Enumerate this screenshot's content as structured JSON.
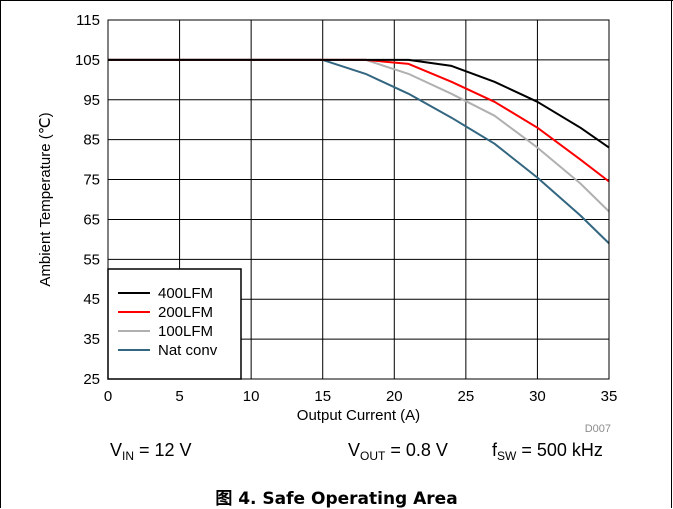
{
  "chart_data": {
    "type": "line",
    "xlabel": "Output Current (A)",
    "ylabel": "Ambient Temperature (℃)",
    "xlim": [
      0,
      35
    ],
    "ylim": [
      25,
      115
    ],
    "x_ticks": [
      0,
      5,
      10,
      15,
      20,
      25,
      30,
      35
    ],
    "y_ticks": [
      25,
      35,
      45,
      55,
      65,
      75,
      85,
      95,
      105,
      115
    ],
    "grid": true,
    "legend_position": "bottom-left",
    "figure_code": "D007",
    "series": [
      {
        "name": "400LFM",
        "color": "#000000",
        "x": [
          0,
          15,
          18,
          21,
          24,
          27,
          30,
          33,
          35
        ],
        "y": [
          105,
          105,
          105,
          105,
          103.5,
          99.5,
          94.5,
          88,
          83
        ]
      },
      {
        "name": "200LFM",
        "color": "#ff0000",
        "x": [
          0,
          15,
          18,
          21,
          24,
          27,
          30,
          33,
          35
        ],
        "y": [
          105,
          105,
          105,
          104,
          99.5,
          94.5,
          88,
          80,
          74.5
        ]
      },
      {
        "name": "100LFM",
        "color": "#b0b0b0",
        "x": [
          0,
          15,
          18,
          21,
          24,
          27,
          30,
          33,
          35
        ],
        "y": [
          105,
          105,
          105,
          101.5,
          96.5,
          91,
          83,
          74,
          67
        ]
      },
      {
        "name": "Nat conv",
        "color": "#336680",
        "x": [
          0,
          15,
          18,
          21,
          24,
          27,
          30,
          33,
          35
        ],
        "y": [
          105,
          105,
          101.5,
          96.5,
          90.5,
          84,
          75.5,
          66,
          59
        ]
      }
    ]
  },
  "conditions": {
    "vin": {
      "symbol": "V",
      "sub": "IN",
      "value": " = 12 V"
    },
    "vout": {
      "symbol": "V",
      "sub": "OUT",
      "value": " = 0.8 V"
    },
    "fsw": {
      "symbol": "f",
      "sub": "SW",
      "value": " = 500 kHz"
    }
  },
  "caption": "图 4. Safe Operating Area"
}
